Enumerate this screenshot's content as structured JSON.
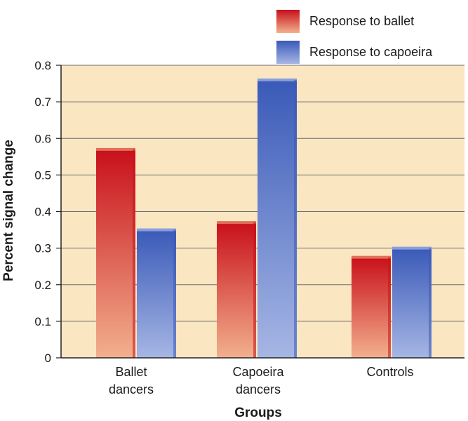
{
  "chart_data": {
    "type": "bar",
    "categories": [
      [
        "Ballet",
        "dancers"
      ],
      [
        "Capoeira",
        "dancers"
      ],
      [
        "Controls"
      ]
    ],
    "series": [
      {
        "name": "Response to ballet",
        "values": [
          0.57,
          0.37,
          0.275
        ],
        "color_top": "#c8101a",
        "color_bottom": "#f2b08e",
        "cap": "#e0705a"
      },
      {
        "name": "Response to capoeira",
        "values": [
          0.35,
          0.76,
          0.3
        ],
        "color_top": "#3a5ab8",
        "color_bottom": "#a6b6e4",
        "cap": "#8a9edc"
      }
    ],
    "xlabel": "Groups",
    "ylabel": "Percent signal change",
    "ylim": [
      0,
      0.8
    ],
    "yticks": [
      "0",
      "0.1",
      "0.2",
      "0.3",
      "0.4",
      "0.5",
      "0.6",
      "0.7",
      "0.8"
    ],
    "grid": true,
    "legend_position": "top-right",
    "plot_background": "#fbe6c2"
  }
}
